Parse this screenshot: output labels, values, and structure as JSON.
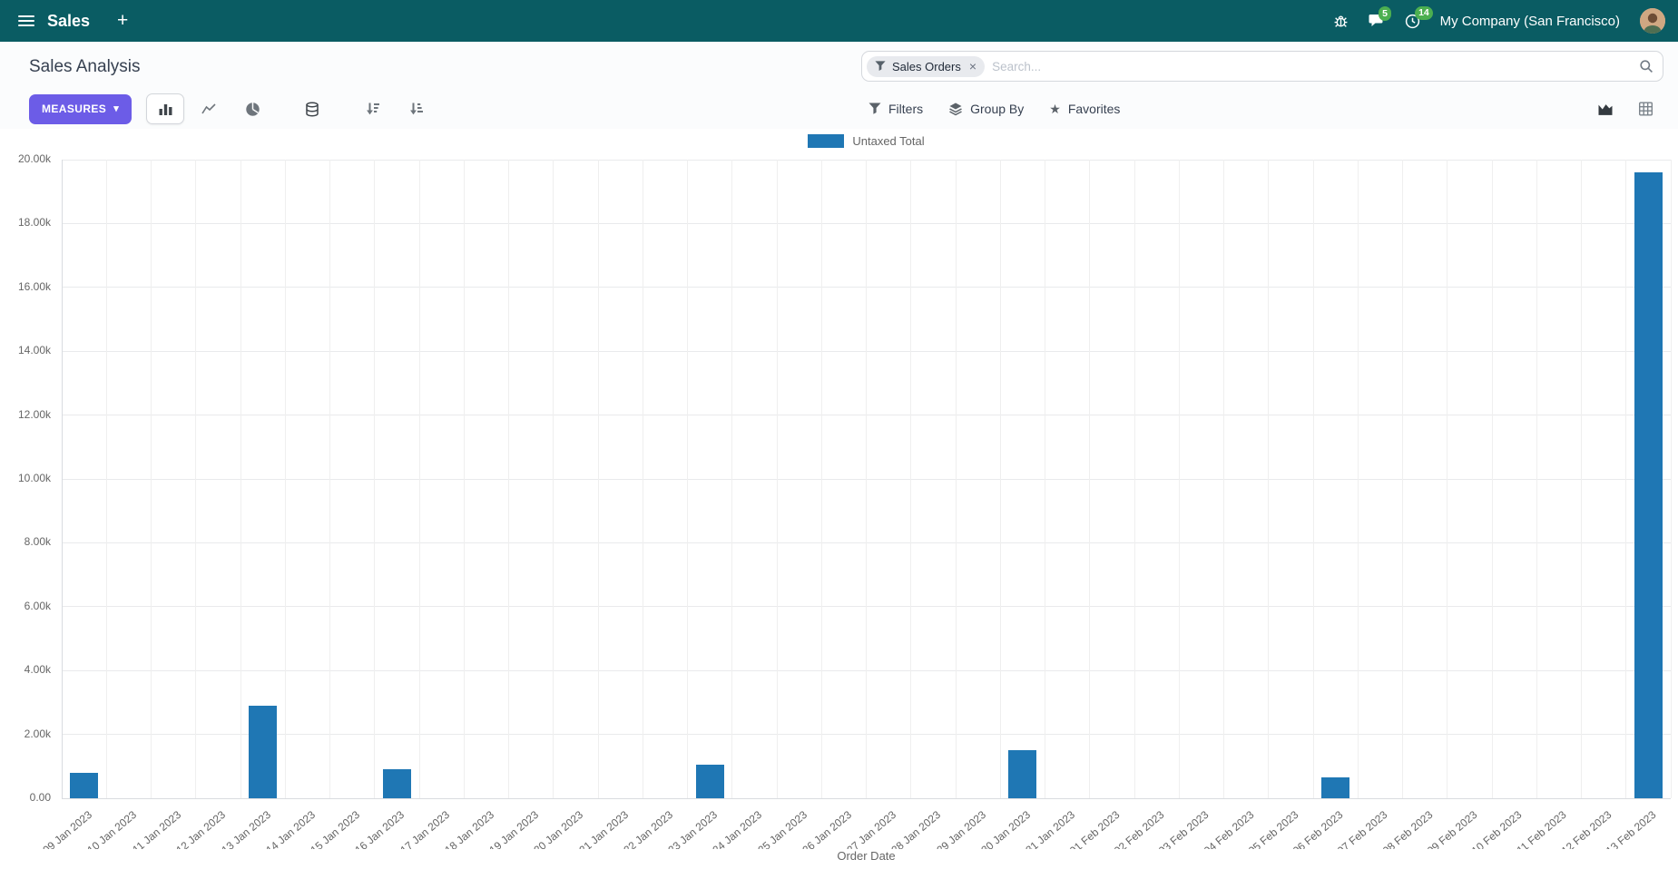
{
  "navbar": {
    "app_name": "Sales",
    "company": "My Company (San Francisco)",
    "message_badge": "5",
    "activity_badge": "14"
  },
  "control_panel": {
    "title": "Sales Analysis",
    "search": {
      "facet": "Sales Orders",
      "placeholder": "Search..."
    },
    "measures_label": "MEASURES",
    "filters_label": "Filters",
    "group_by_label": "Group By",
    "favorites_label": "Favorites"
  },
  "icons": {
    "plus": "+",
    "caret_down": "▾",
    "close": "×",
    "star": "★"
  },
  "chart_data": {
    "type": "bar",
    "title": "",
    "categories": [
      "09 Jan 2023",
      "10 Jan 2023",
      "11 Jan 2023",
      "12 Jan 2023",
      "13 Jan 2023",
      "14 Jan 2023",
      "15 Jan 2023",
      "16 Jan 2023",
      "17 Jan 2023",
      "18 Jan 2023",
      "19 Jan 2023",
      "20 Jan 2023",
      "21 Jan 2023",
      "22 Jan 2023",
      "23 Jan 2023",
      "24 Jan 2023",
      "25 Jan 2023",
      "26 Jan 2023",
      "27 Jan 2023",
      "28 Jan 2023",
      "29 Jan 2023",
      "30 Jan 2023",
      "31 Jan 2023",
      "01 Feb 2023",
      "02 Feb 2023",
      "03 Feb 2023",
      "04 Feb 2023",
      "05 Feb 2023",
      "06 Feb 2023",
      "07 Feb 2023",
      "08 Feb 2023",
      "09 Feb 2023",
      "10 Feb 2023",
      "11 Feb 2023",
      "12 Feb 2023",
      "13 Feb 2023"
    ],
    "series": [
      {
        "name": "Untaxed Total",
        "color": "#1f77b4",
        "values": [
          800,
          0,
          0,
          0,
          2900,
          0,
          0,
          900,
          0,
          0,
          0,
          0,
          0,
          0,
          1050,
          0,
          0,
          0,
          0,
          0,
          0,
          1500,
          0,
          0,
          0,
          0,
          0,
          0,
          650,
          0,
          0,
          0,
          0,
          0,
          0,
          19600
        ]
      }
    ],
    "xlabel": "Order Date",
    "ylabel": "",
    "ylim": [
      0,
      20000
    ],
    "ytick_labels": [
      "0.00",
      "2.00k",
      "4.00k",
      "6.00k",
      "8.00k",
      "10.00k",
      "12.00k",
      "14.00k",
      "16.00k",
      "18.00k",
      "20.00k"
    ],
    "grid": true,
    "legend_position": "top"
  }
}
